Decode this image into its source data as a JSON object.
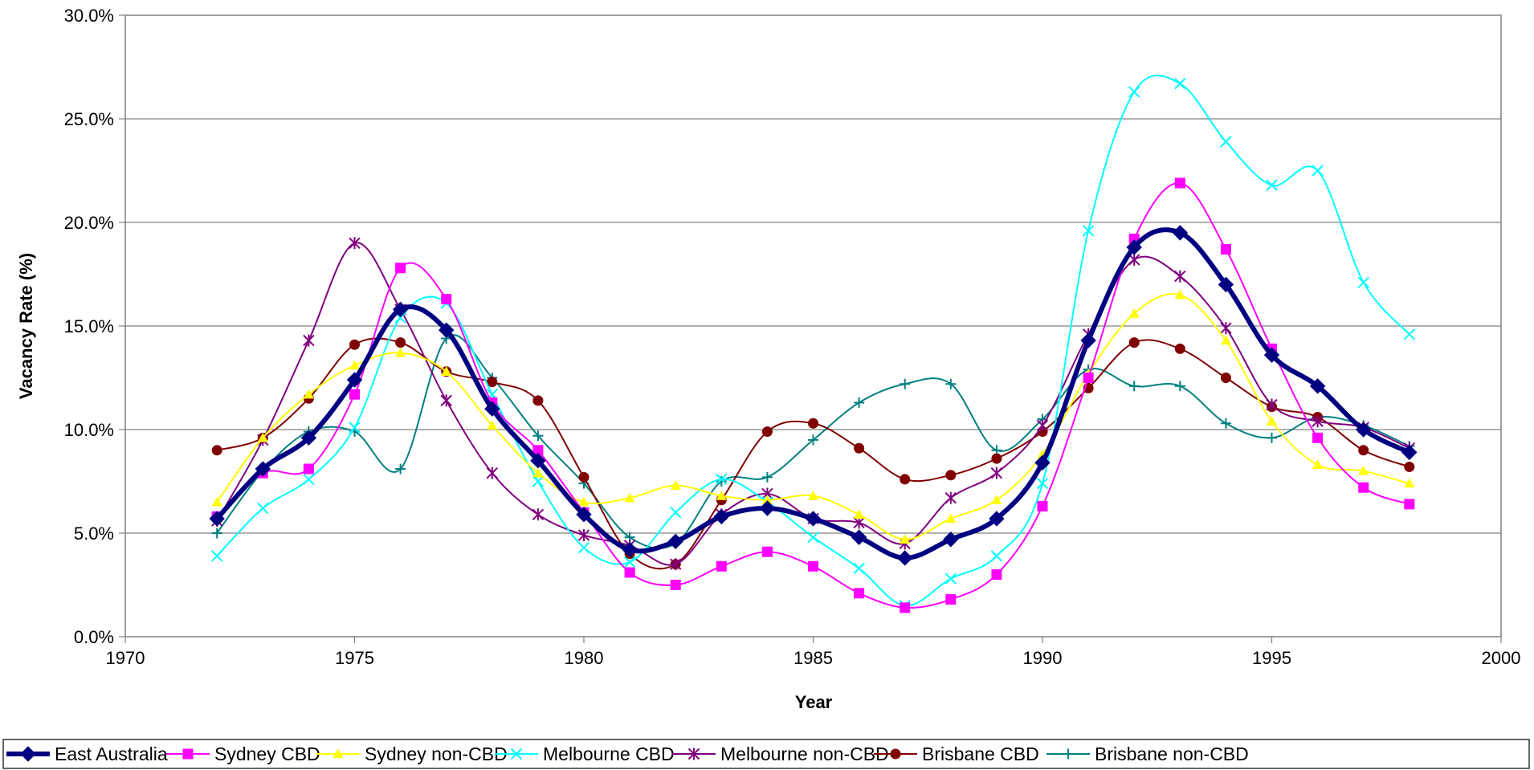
{
  "chart_data": {
    "type": "line",
    "title": "",
    "xlabel": "Year",
    "ylabel": "Vacancy Rate (%)",
    "xlim": [
      1970,
      2000
    ],
    "ylim": [
      0,
      30
    ],
    "x_ticks": [
      1970,
      1975,
      1980,
      1985,
      1990,
      1995,
      2000
    ],
    "y_ticks": [
      0,
      5,
      10,
      15,
      20,
      25,
      30
    ],
    "x_tick_labels": [
      "1970",
      "1975",
      "1980",
      "1985",
      "1990",
      "1995",
      "2000"
    ],
    "y_tick_labels": [
      "0.0%",
      "5.0%",
      "10.0%",
      "15.0%",
      "20.0%",
      "25.0%",
      "30.0%"
    ],
    "grid": "horizontal",
    "legend_position": "bottom",
    "x": [
      1972,
      1973,
      1974,
      1975,
      1976,
      1977,
      1978,
      1979,
      1980,
      1981,
      1982,
      1983,
      1984,
      1985,
      1986,
      1987,
      1988,
      1989,
      1990,
      1991,
      1992,
      1993,
      1994,
      1995,
      1996,
      1997,
      1998
    ],
    "series": [
      {
        "name": "East Australia",
        "color": "#000080",
        "marker": "diamond",
        "width": 6,
        "values": [
          5.7,
          8.1,
          9.6,
          12.4,
          15.8,
          14.8,
          11.0,
          8.5,
          5.9,
          4.2,
          4.6,
          5.8,
          6.2,
          5.7,
          4.8,
          3.8,
          4.7,
          5.7,
          8.4,
          14.3,
          18.8,
          19.5,
          17.0,
          13.6,
          12.1,
          10.0,
          8.9
        ]
      },
      {
        "name": "Sydney CBD",
        "color": "#ff00ff",
        "marker": "square",
        "width": 2,
        "values": [
          5.8,
          7.9,
          8.1,
          11.7,
          17.8,
          16.3,
          11.3,
          9.0,
          6.0,
          3.1,
          2.5,
          3.4,
          4.1,
          3.4,
          2.1,
          1.4,
          1.8,
          3.0,
          6.3,
          12.5,
          19.2,
          21.9,
          18.7,
          13.9,
          9.6,
          7.2,
          6.4
        ]
      },
      {
        "name": "Sydney non-CBD",
        "color": "#ffff00",
        "marker": "triangle",
        "width": 2,
        "values": [
          6.5,
          9.6,
          11.7,
          13.1,
          13.7,
          12.8,
          10.2,
          7.9,
          6.5,
          6.7,
          7.3,
          6.8,
          6.6,
          6.8,
          5.9,
          4.7,
          5.7,
          6.6,
          8.8,
          12.7,
          15.6,
          16.5,
          14.3,
          10.4,
          8.3,
          8.0,
          7.4
        ]
      },
      {
        "name": "Melbourne CBD",
        "color": "#00ffff",
        "marker": "x",
        "width": 2,
        "values": [
          3.9,
          6.2,
          7.6,
          10.1,
          15.4,
          16.1,
          11.7,
          7.5,
          4.3,
          3.6,
          6.0,
          7.6,
          6.5,
          4.8,
          3.3,
          1.5,
          2.8,
          3.9,
          7.4,
          19.6,
          26.3,
          26.7,
          23.9,
          21.8,
          22.5,
          17.1,
          14.6
        ]
      },
      {
        "name": "Melbourne non-CBD",
        "color": "#800080",
        "marker": "star",
        "width": 2,
        "values": [
          5.6,
          9.5,
          14.3,
          19.0,
          15.8,
          11.4,
          7.9,
          5.9,
          4.9,
          4.4,
          3.5,
          5.9,
          6.9,
          5.7,
          5.5,
          4.5,
          6.7,
          7.9,
          10.2,
          14.6,
          18.2,
          17.4,
          14.9,
          11.2,
          10.4,
          10.1,
          9.1
        ]
      },
      {
        "name": "Brisbane CBD",
        "color": "#800000",
        "marker": "circle",
        "width": 2,
        "values": [
          9.0,
          9.6,
          11.5,
          14.1,
          14.2,
          12.8,
          12.3,
          11.4,
          7.7,
          4.0,
          3.5,
          6.6,
          9.9,
          10.3,
          9.1,
          7.6,
          7.8,
          8.6,
          9.9,
          12.0,
          14.2,
          13.9,
          12.5,
          11.1,
          10.6,
          9.0,
          8.2
        ]
      },
      {
        "name": "Brisbane non-CBD",
        "color": "#008080",
        "marker": "plus",
        "width": 2,
        "values": [
          5.0,
          8.0,
          9.9,
          9.9,
          8.1,
          14.4,
          12.5,
          9.7,
          7.4,
          4.8,
          4.5,
          7.5,
          7.7,
          9.5,
          11.3,
          12.2,
          12.2,
          9.0,
          10.5,
          12.9,
          12.1,
          12.1,
          10.3,
          9.6,
          10.6,
          10.2,
          9.2
        ]
      }
    ]
  }
}
